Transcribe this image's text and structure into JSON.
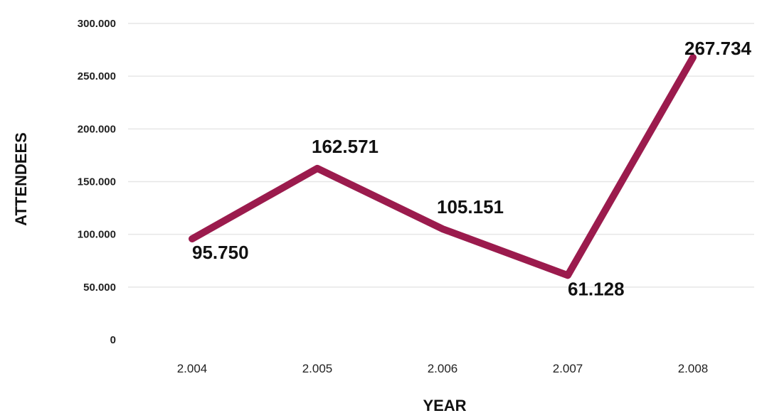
{
  "chart_data": {
    "type": "line",
    "categories": [
      "2.004",
      "2.005",
      "2.006",
      "2.007",
      "2.008"
    ],
    "values": [
      95750,
      162571,
      105151,
      61128,
      267734
    ],
    "value_labels": [
      "95.750",
      "162.571",
      "105.151",
      "61.128",
      "267.734"
    ],
    "ylim": [
      0,
      300000
    ],
    "yticks": [
      0,
      50000,
      100000,
      150000,
      200000,
      250000,
      300000
    ],
    "ytick_labels": [
      "0",
      "50.000",
      "100.000",
      "150.000",
      "200.000",
      "250.000",
      "300.000"
    ],
    "xlabel": "YEAR",
    "ylabel": "ATTENDEES",
    "grid": true,
    "line_color": "#9b1b4d",
    "grid_color": "#e6e6e6"
  }
}
